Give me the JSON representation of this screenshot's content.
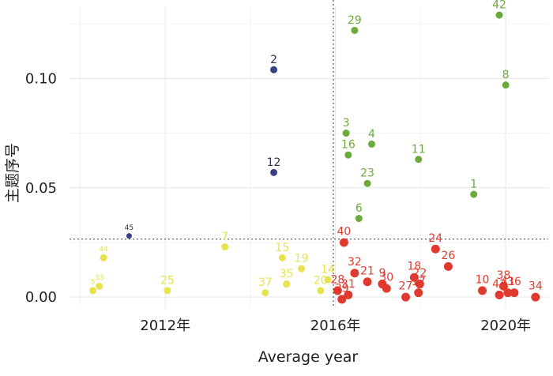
{
  "chart_data": {
    "type": "scatter",
    "title": "",
    "xlabel": "Average year",
    "ylabel": "主题序号",
    "xlim": [
      2009.75,
      2021.0
    ],
    "ylim": [
      -0.005,
      0.133
    ],
    "x_ticks": [
      {
        "value": 2012,
        "label": "2012年"
      },
      {
        "value": 2016,
        "label": "2016年"
      },
      {
        "value": 2020,
        "label": "2020年"
      }
    ],
    "y_ticks": [
      {
        "value": 0.0,
        "label": "0.00"
      },
      {
        "value": 0.05,
        "label": "0.05"
      },
      {
        "value": 0.1,
        "label": "0.10"
      }
    ],
    "grid": true,
    "reference_lines": {
      "x": 2015.95,
      "y": 0.0265
    },
    "colors": {
      "yellow": "#e8e34b",
      "red": "#e03a2f",
      "green": "#6aaa3a",
      "navy": "#3a3f86"
    },
    "series": [
      {
        "name": "yellow",
        "points": [
          {
            "id": "5",
            "x": 2010.3,
            "y": 0.003
          },
          {
            "id": "33",
            "x": 2010.45,
            "y": 0.005
          },
          {
            "id": "44",
            "x": 2010.55,
            "y": 0.018
          },
          {
            "id": "7",
            "x": 2013.4,
            "y": 0.023
          },
          {
            "id": "25",
            "x": 2012.05,
            "y": 0.003
          },
          {
            "id": "37",
            "x": 2014.35,
            "y": 0.002
          },
          {
            "id": "35",
            "x": 2014.85,
            "y": 0.006
          },
          {
            "id": "15",
            "x": 2014.75,
            "y": 0.018
          },
          {
            "id": "19",
            "x": 2015.2,
            "y": 0.013
          },
          {
            "id": "14",
            "x": 2015.82,
            "y": 0.008
          },
          {
            "id": "20",
            "x": 2015.65,
            "y": 0.003
          }
        ]
      },
      {
        "name": "red",
        "points": [
          {
            "id": "40",
            "x": 2016.2,
            "y": 0.025
          },
          {
            "id": "28",
            "x": 2016.05,
            "y": 0.003
          },
          {
            "id": "39",
            "x": 2016.15,
            "y": -0.001
          },
          {
            "id": "31",
            "x": 2016.3,
            "y": 0.001
          },
          {
            "id": "32",
            "x": 2016.45,
            "y": 0.011
          },
          {
            "id": "21",
            "x": 2016.75,
            "y": 0.007
          },
          {
            "id": "9",
            "x": 2017.1,
            "y": 0.006
          },
          {
            "id": "30",
            "x": 2017.2,
            "y": 0.004
          },
          {
            "id": "27",
            "x": 2017.65,
            "y": 0.0
          },
          {
            "id": "18",
            "x": 2017.85,
            "y": 0.009
          },
          {
            "id": "17",
            "x": 2017.95,
            "y": 0.002
          },
          {
            "id": "22",
            "x": 2017.98,
            "y": 0.006
          },
          {
            "id": "24",
            "x": 2018.35,
            "y": 0.022
          },
          {
            "id": "26",
            "x": 2018.65,
            "y": 0.014
          },
          {
            "id": "10",
            "x": 2019.45,
            "y": 0.003
          },
          {
            "id": "38",
            "x": 2019.95,
            "y": 0.005
          },
          {
            "id": "43",
            "x": 2019.85,
            "y": 0.001
          },
          {
            "id": "41",
            "x": 2020.05,
            "y": 0.002
          },
          {
            "id": "36",
            "x": 2020.2,
            "y": 0.002
          },
          {
            "id": "34",
            "x": 2020.7,
            "y": 0.0
          }
        ]
      },
      {
        "name": "green",
        "points": [
          {
            "id": "29",
            "x": 2016.45,
            "y": 0.122
          },
          {
            "id": "3",
            "x": 2016.25,
            "y": 0.075
          },
          {
            "id": "4",
            "x": 2016.85,
            "y": 0.07
          },
          {
            "id": "16",
            "x": 2016.3,
            "y": 0.065
          },
          {
            "id": "11",
            "x": 2017.95,
            "y": 0.063
          },
          {
            "id": "23",
            "x": 2016.75,
            "y": 0.052
          },
          {
            "id": "6",
            "x": 2016.55,
            "y": 0.036
          },
          {
            "id": "1",
            "x": 2019.25,
            "y": 0.047
          },
          {
            "id": "42",
            "x": 2019.85,
            "y": 0.129
          },
          {
            "id": "8",
            "x": 2020.0,
            "y": 0.097
          }
        ]
      },
      {
        "name": "navy",
        "points": [
          {
            "id": "2",
            "x": 2014.55,
            "y": 0.104
          },
          {
            "id": "12",
            "x": 2014.55,
            "y": 0.057
          },
          {
            "id": "45",
            "x": 2011.15,
            "y": 0.028
          }
        ]
      }
    ]
  }
}
